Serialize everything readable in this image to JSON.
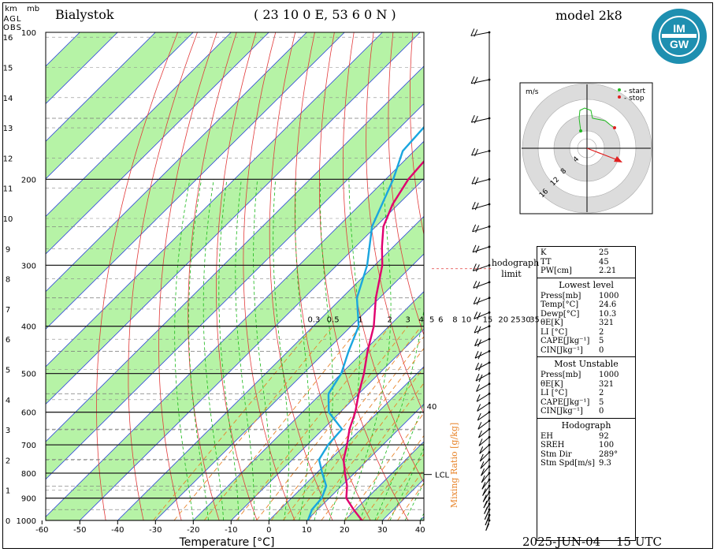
{
  "header": {
    "station": "Bialystok",
    "coords": "( 23 10 0 E, 53 6 0 N )",
    "model": "model 2k8",
    "date": "2025-JUN-04",
    "time": "15 UTC",
    "left_units": [
      "km",
      "mb"
    ],
    "left_sub": [
      "AGL",
      "OBS"
    ],
    "hodograph_note": [
      "hodograph",
      "limit"
    ],
    "lcl": "LCL",
    "mixing_label": "Mixing Ratio [g/kg]"
  },
  "logo": {
    "text": "IMGW",
    "color": "#1e8fb0"
  },
  "chart_data": {
    "type": "skew-t",
    "xlabel": "Temperature [°C]",
    "x_ticks": [
      -60,
      -50,
      -40,
      -30,
      -20,
      -10,
      0,
      10,
      20,
      30,
      40
    ],
    "p_ticks": [
      100,
      200,
      300,
      400,
      500,
      600,
      700,
      800,
      900,
      1000
    ],
    "km_ticks": [
      0,
      1,
      2,
      3,
      4,
      5,
      6,
      7,
      8,
      9,
      10,
      11,
      12,
      13,
      14,
      15,
      16
    ],
    "mixing_ticks": [
      "0.3",
      "0.5",
      "1",
      "2",
      "3",
      "4",
      "5",
      "6",
      "8",
      "10",
      "15",
      "20",
      "25",
      "30",
      "35"
    ],
    "mixing_40": "40",
    "temperature": {
      "color": "#e0006e",
      "points": [
        [
          1000,
          24.6
        ],
        [
          950,
          19.5
        ],
        [
          900,
          14.5
        ],
        [
          850,
          11.5
        ],
        [
          800,
          7.5
        ],
        [
          750,
          3.5
        ],
        [
          700,
          0.5
        ],
        [
          650,
          -3.0
        ],
        [
          600,
          -6.0
        ],
        [
          550,
          -10.0
        ],
        [
          500,
          -14.0
        ],
        [
          450,
          -19.0
        ],
        [
          400,
          -24.0
        ],
        [
          350,
          -31.0
        ],
        [
          300,
          -38.0
        ],
        [
          275,
          -43.0
        ],
        [
          250,
          -48.0
        ],
        [
          225,
          -51.5
        ],
        [
          200,
          -54.0
        ],
        [
          175,
          -55.0
        ],
        [
          150,
          -55.0
        ],
        [
          125,
          -53.5
        ],
        [
          100,
          -51.0
        ]
      ]
    },
    "dewpoint": {
      "color": "#1aa6df",
      "points": [
        [
          1000,
          10.3
        ],
        [
          950,
          8.5
        ],
        [
          900,
          8.0
        ],
        [
          850,
          6.0
        ],
        [
          800,
          1.5
        ],
        [
          750,
          -3.0
        ],
        [
          700,
          -4.5
        ],
        [
          650,
          -5.0
        ],
        [
          600,
          -13.0
        ],
        [
          550,
          -18.0
        ],
        [
          500,
          -20.0
        ],
        [
          450,
          -24.0
        ],
        [
          400,
          -28.0
        ],
        [
          350,
          -36.0
        ],
        [
          300,
          -42.0
        ],
        [
          250,
          -51.0
        ],
        [
          200,
          -58.0
        ],
        [
          175,
          -63.0
        ],
        [
          150,
          -64.0
        ],
        [
          125,
          -66.5
        ],
        [
          100,
          -68.5
        ]
      ]
    },
    "hodograph": {
      "units": "m/s",
      "rings": [
        "4",
        "8",
        "12",
        "16"
      ],
      "legend": [
        "- start",
        "- stop"
      ],
      "colors": {
        "start": "#22bb22",
        "stop": "#e02020",
        "trace": "#22bb22",
        "storm": "#e02020"
      }
    },
    "stats": {
      "indices": [
        [
          "K",
          "25"
        ],
        [
          "TT",
          "45"
        ],
        [
          "PW[cm]",
          "2.21"
        ]
      ],
      "lowest_level": {
        "title": "Lowest level",
        "rows": [
          [
            "Press[mb]",
            "1000"
          ],
          [
            "Temp[°C]",
            "24.6"
          ],
          [
            "Dewp[°C]",
            "10.3"
          ],
          [
            "θE[K]",
            "321"
          ],
          [
            "LI [°C]",
            "2"
          ],
          [
            "CAPE[Jkg⁻¹]",
            "5"
          ],
          [
            "CIN[Jkg⁻¹]",
            "0"
          ]
        ]
      },
      "most_unstable": {
        "title": "Most Unstable",
        "rows": [
          [
            "Press[mb]",
            "1000"
          ],
          [
            "θE[K]",
            "321"
          ],
          [
            "LI [°C]",
            "2"
          ],
          [
            "CAPE[Jkg⁻¹]",
            "5"
          ],
          [
            "CIN[Jkg⁻¹]",
            "0"
          ]
        ]
      },
      "hodograph": {
        "title": "Hodograph",
        "rows": [
          [
            "EH",
            "92"
          ],
          [
            "SREH",
            "100"
          ],
          [
            "Stm Dir",
            "289°"
          ],
          [
            "Stm Spd[m/s]",
            "9.3"
          ]
        ]
      }
    }
  }
}
